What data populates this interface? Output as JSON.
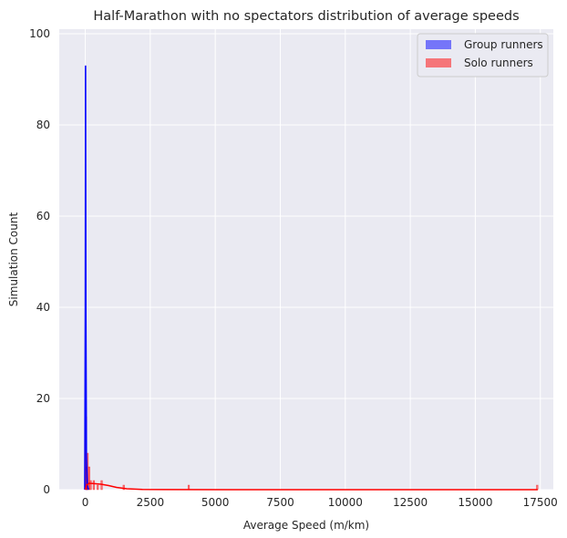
{
  "chart_data": {
    "type": "histogram",
    "title": "Half-Marathon with no spectators distribution of average speeds",
    "xlabel": "Average Speed (m/km)",
    "ylabel": "Simulation Count",
    "xlim": [
      -1000,
      18000
    ],
    "ylim": [
      0,
      101
    ],
    "xticks": [
      0,
      2500,
      5000,
      7500,
      10000,
      12500,
      15000,
      17500
    ],
    "xtick_labels": [
      "0",
      "2500",
      "5000",
      "7500",
      "10000",
      "12500",
      "15000",
      "17500"
    ],
    "yticks": [
      0,
      20,
      40,
      60,
      80,
      100
    ],
    "ytick_labels": [
      "0",
      "20",
      "40",
      "60",
      "80",
      "100"
    ],
    "grid": true,
    "legend_position": "top-right",
    "series": [
      {
        "name": "Group runners",
        "color": "#0000ff",
        "bins": [
          {
            "x0": 0,
            "x1": 25,
            "count": 93
          },
          {
            "x0": 25,
            "x1": 50,
            "count": 5
          },
          {
            "x0": 50,
            "x1": 75,
            "count": 1
          },
          {
            "x0": 75,
            "x1": 100,
            "count": 1
          }
        ],
        "kde": [
          [
            -20,
            0
          ],
          [
            0,
            40
          ],
          [
            12,
            93
          ],
          [
            25,
            40
          ],
          [
            45,
            8
          ],
          [
            80,
            1
          ],
          [
            130,
            0
          ]
        ]
      },
      {
        "name": "Solo runners",
        "color": "#ff0000",
        "bins": [
          {
            "x0": 0,
            "x1": 60,
            "count": 16
          },
          {
            "x0": 60,
            "x1": 120,
            "count": 8
          },
          {
            "x0": 120,
            "x1": 180,
            "count": 5
          },
          {
            "x0": 180,
            "x1": 240,
            "count": 2
          },
          {
            "x0": 300,
            "x1": 360,
            "count": 2
          },
          {
            "x0": 450,
            "x1": 510,
            "count": 1
          },
          {
            "x0": 600,
            "x1": 660,
            "count": 2
          },
          {
            "x0": 1450,
            "x1": 1510,
            "count": 1
          },
          {
            "x0": 3950,
            "x1": 4010,
            "count": 1
          },
          {
            "x0": 17350,
            "x1": 17410,
            "count": 1
          }
        ],
        "kde": [
          [
            0,
            0
          ],
          [
            50,
            1.0
          ],
          [
            150,
            1.4
          ],
          [
            300,
            1.35
          ],
          [
            600,
            1.2
          ],
          [
            900,
            0.9
          ],
          [
            1200,
            0.5
          ],
          [
            1600,
            0.2
          ],
          [
            2200,
            0.05
          ],
          [
            3000,
            0.02
          ],
          [
            6000,
            0
          ],
          [
            10000,
            0
          ],
          [
            15000,
            0
          ],
          [
            17400,
            0
          ]
        ]
      }
    ]
  }
}
